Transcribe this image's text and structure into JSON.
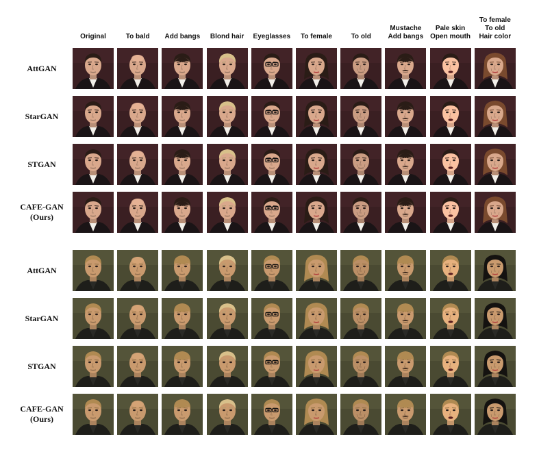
{
  "columns": [
    "Original",
    "To bald",
    "Add bangs",
    "Blond hair",
    "Eyeglasses",
    "To female",
    "To old",
    "Mustache\nAdd bangs",
    "Pale skin\nOpen mouth",
    "To female\nTo old\nHair color"
  ],
  "blocks": [
    {
      "subject": "portrait-1",
      "palette": {
        "bg": "#3a1f22",
        "skin": "#d9a88c",
        "hair": "#2a1c16",
        "shirt": "#f2efe9",
        "jacket": "#1a1416"
      },
      "rows": [
        {
          "label": "AttGAN"
        },
        {
          "label": "StarGAN"
        },
        {
          "label": "STGAN"
        },
        {
          "label": "CAFE-GAN\n(Ours)"
        }
      ]
    },
    {
      "subject": "portrait-2",
      "palette": {
        "bg": "#4a4a32",
        "skin": "#c99a6e",
        "hair": "#b08a52",
        "shirt": "#2a2a26",
        "jacket": "#1e1e1a"
      },
      "rows": [
        {
          "label": "AttGAN"
        },
        {
          "label": "StarGAN"
        },
        {
          "label": "STGAN"
        },
        {
          "label": "CAFE-GAN\n(Ours)"
        }
      ]
    }
  ],
  "edits": [
    "none",
    "bald",
    "bangs",
    "blond",
    "glasses",
    "female",
    "old",
    "mustache-bangs",
    "pale-open-mouth",
    "female-old-haircolor"
  ]
}
